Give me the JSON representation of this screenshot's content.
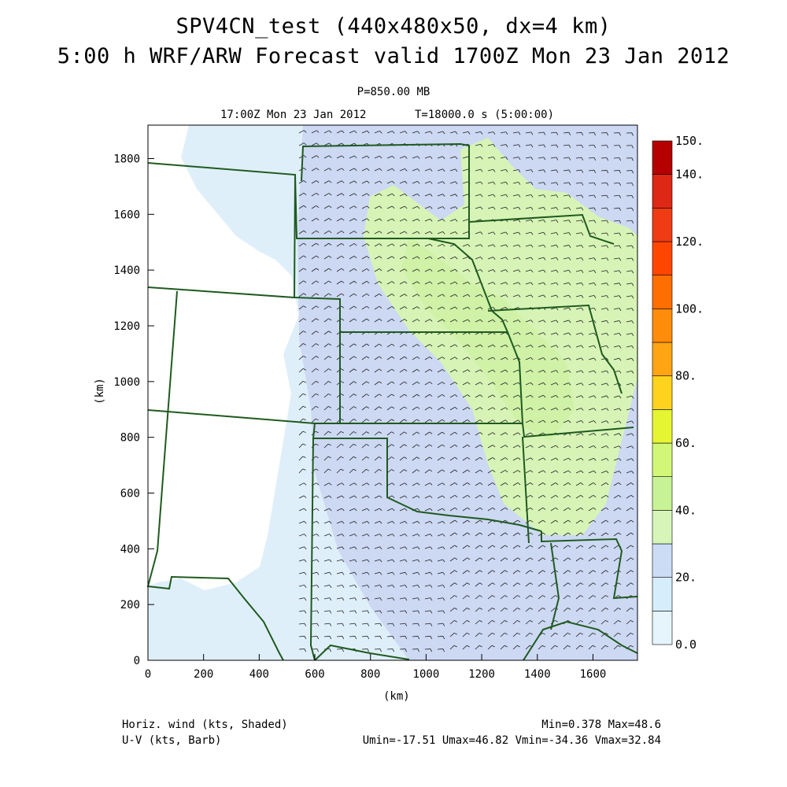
{
  "header": {
    "title_line1": "SPV4CN_test (440x480x50, dx=4 km)",
    "title_line2": "5:00 h WRF/ARW Forecast valid 1700Z Mon 23 Jan 2012",
    "level": "P=850.00 MB",
    "valid_time": "17:00Z Mon 23 Jan 2012",
    "model_time": "T=18000.0 s (5:00:00)"
  },
  "chart_data": {
    "type": "heatmap",
    "x_axis": {
      "label": "(km)",
      "range": [
        0,
        1760
      ],
      "ticks": [
        "0",
        "200",
        "400",
        "600",
        "800",
        "1000",
        "1200",
        "1400",
        "1600"
      ]
    },
    "y_axis": {
      "label": "(km)",
      "range": [
        0,
        1920
      ],
      "ticks": [
        "0",
        "200",
        "400",
        "600",
        "800",
        "1000",
        "1200",
        "1400",
        "1600",
        "1800"
      ]
    },
    "colorbar": {
      "levels": [
        0,
        10,
        20,
        30,
        40,
        50,
        60,
        70,
        80,
        90,
        100,
        110,
        120,
        130,
        140,
        150
      ],
      "colors": [
        "#e6f5fc",
        "#d6eefc",
        "#cddcf5",
        "#d7f5b9",
        "#c8f296",
        "#d2f778",
        "#e6f532",
        "#ffd21e",
        "#ffa514",
        "#ff8c0a",
        "#ff6e00",
        "#ff4600",
        "#f03c14",
        "#dc2814",
        "#b40000"
      ],
      "labels": [
        "0.0",
        "20.",
        "40.",
        "60.",
        "80.",
        "100.",
        "120.",
        "140.",
        "150."
      ]
    },
    "field_stats": {
      "min": "Min=0.378",
      "max": "Max=48.6"
    }
  },
  "footer": {
    "shaded_desc": "Horiz. wind (kts, Shaded)",
    "barb_desc": "U-V (kts, Barb)",
    "min_max": "Min=0.378 Max=48.6",
    "uv_stats": "Umin=-17.51 Umax=46.82 Vmin=-34.36 Vmax=32.84"
  },
  "colors": {
    "border": "#1f5a1f",
    "axis": "#000000"
  }
}
